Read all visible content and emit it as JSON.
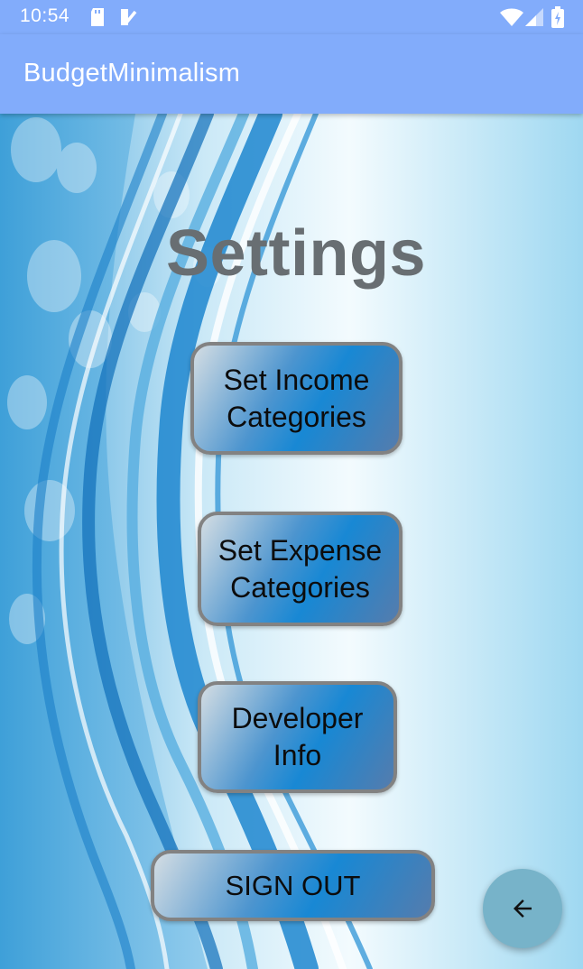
{
  "status_bar": {
    "time": "10:54",
    "icons": [
      "sd-card-icon",
      "notification-check-icon",
      "wifi-icon",
      "signal-icon",
      "battery-charging-icon"
    ]
  },
  "app_bar": {
    "title": "BudgetMinimalism"
  },
  "main": {
    "heading": "Settings",
    "buttons": {
      "income": {
        "line1": "Set Income",
        "line2": "Categories"
      },
      "expense": {
        "line1": "Set Expense",
        "line2": "Categories"
      },
      "developer": {
        "line1": "Developer",
        "line2": "Info"
      },
      "signout": {
        "label": "SIGN OUT"
      }
    }
  },
  "fab": {
    "icon": "arrow-left-icon"
  },
  "colors": {
    "app_bar": "#82acfb",
    "heading": "#686e72",
    "button_border": "#828282",
    "fab": "#77b3c9"
  }
}
